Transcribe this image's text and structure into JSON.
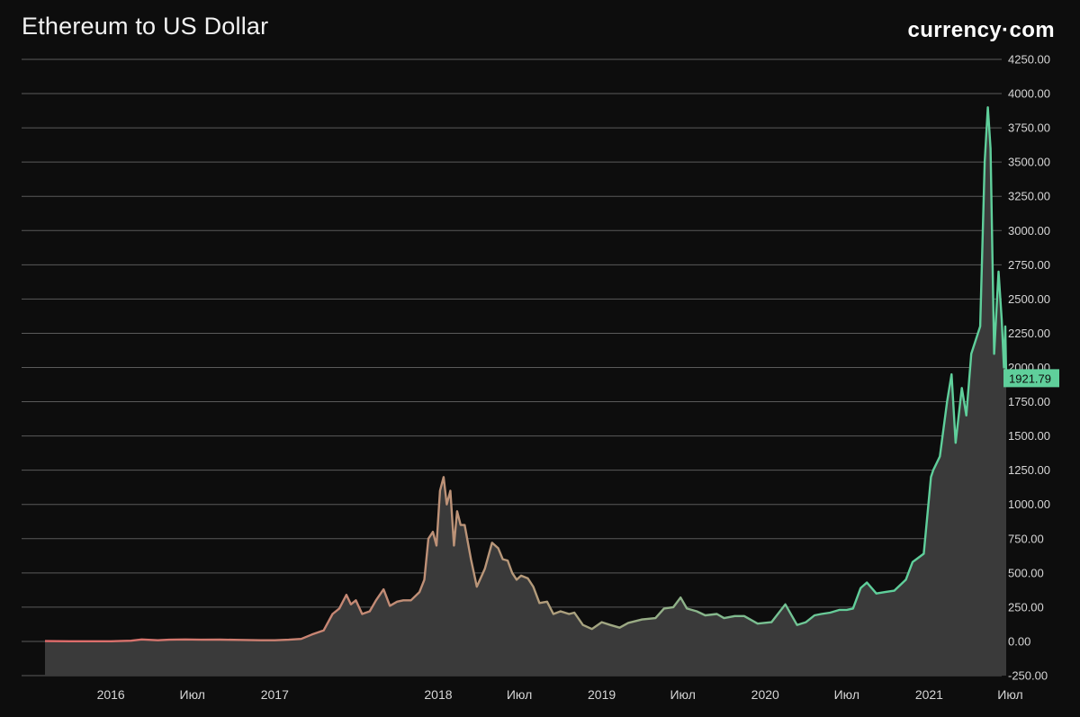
{
  "header": {
    "title": "Ethereum to US Dollar",
    "brand": "currency·com"
  },
  "colors": {
    "background": "#0d0d0d",
    "grid": "#5a5a5a",
    "line_start": "#e06a6a",
    "line_mid": "#b69a7a",
    "line_end": "#5fcf9b",
    "area_fill": "#3a3a3a",
    "price_tag": "#5fcf9b"
  },
  "chart_data": {
    "type": "area",
    "title": "Ethereum to US Dollar",
    "xlabel": "",
    "ylabel": "",
    "ylim": [
      -250,
      4250
    ],
    "y_ticks": [
      "4250.00",
      "4000.00",
      "3750.00",
      "3500.00",
      "3250.00",
      "3000.00",
      "2750.00",
      "2500.00",
      "2250.00",
      "2000.00",
      "1750.00",
      "1500.00",
      "1250.00",
      "1000.00",
      "750.00",
      "500.00",
      "250.00",
      "0.00",
      "-250.00"
    ],
    "x_ticks": [
      {
        "label": "2016",
        "date": "2016-01-01"
      },
      {
        "label": "Июл",
        "date": "2016-07-01"
      },
      {
        "label": "2017",
        "date": "2017-01-01"
      },
      {
        "label": "2018",
        "date": "2018-01-01"
      },
      {
        "label": "Июл",
        "date": "2018-07-01"
      },
      {
        "label": "2019",
        "date": "2019-01-01"
      },
      {
        "label": "Июл",
        "date": "2019-07-01"
      },
      {
        "label": "2020",
        "date": "2020-01-01"
      },
      {
        "label": "Июл",
        "date": "2020-07-01"
      },
      {
        "label": "2021",
        "date": "2021-01-01"
      },
      {
        "label": "Июл",
        "date": "2021-07-01"
      }
    ],
    "xlim": [
      "2015-08-07",
      "2021-06-22"
    ],
    "grid": true,
    "last_price_label": "1921.79",
    "series": [
      {
        "points": [
          [
            "2015-08-07",
            2
          ],
          [
            "2015-10-01",
            1
          ],
          [
            "2015-12-01",
            1
          ],
          [
            "2016-01-01",
            1
          ],
          [
            "2016-02-15",
            5
          ],
          [
            "2016-03-10",
            14
          ],
          [
            "2016-04-15",
            8
          ],
          [
            "2016-05-10",
            12
          ],
          [
            "2016-06-15",
            14
          ],
          [
            "2016-07-20",
            12
          ],
          [
            "2016-09-01",
            13
          ],
          [
            "2016-10-15",
            11
          ],
          [
            "2016-12-01",
            8
          ],
          [
            "2017-01-01",
            8
          ],
          [
            "2017-02-01",
            12
          ],
          [
            "2017-03-01",
            18
          ],
          [
            "2017-03-25",
            50
          ],
          [
            "2017-04-20",
            80
          ],
          [
            "2017-05-10",
            200
          ],
          [
            "2017-05-25",
            240
          ],
          [
            "2017-06-10",
            340
          ],
          [
            "2017-06-20",
            270
          ],
          [
            "2017-07-01",
            300
          ],
          [
            "2017-07-15",
            200
          ],
          [
            "2017-08-01",
            220
          ],
          [
            "2017-08-15",
            300
          ],
          [
            "2017-09-01",
            380
          ],
          [
            "2017-09-15",
            260
          ],
          [
            "2017-10-01",
            290
          ],
          [
            "2017-10-15",
            300
          ],
          [
            "2017-11-01",
            300
          ],
          [
            "2017-11-20",
            360
          ],
          [
            "2017-12-01",
            450
          ],
          [
            "2017-12-10",
            750
          ],
          [
            "2017-12-20",
            800
          ],
          [
            "2017-12-28",
            700
          ],
          [
            "2018-01-05",
            1100
          ],
          [
            "2018-01-13",
            1200
          ],
          [
            "2018-01-20",
            1000
          ],
          [
            "2018-01-28",
            1100
          ],
          [
            "2018-02-05",
            700
          ],
          [
            "2018-02-12",
            950
          ],
          [
            "2018-02-20",
            850
          ],
          [
            "2018-03-01",
            850
          ],
          [
            "2018-03-15",
            600
          ],
          [
            "2018-03-28",
            400
          ],
          [
            "2018-04-15",
            530
          ],
          [
            "2018-05-01",
            720
          ],
          [
            "2018-05-15",
            680
          ],
          [
            "2018-05-25",
            600
          ],
          [
            "2018-06-05",
            590
          ],
          [
            "2018-06-15",
            500
          ],
          [
            "2018-06-25",
            450
          ],
          [
            "2018-07-05",
            480
          ],
          [
            "2018-07-20",
            460
          ],
          [
            "2018-08-01",
            400
          ],
          [
            "2018-08-15",
            280
          ],
          [
            "2018-09-01",
            290
          ],
          [
            "2018-09-15",
            200
          ],
          [
            "2018-10-01",
            220
          ],
          [
            "2018-10-20",
            200
          ],
          [
            "2018-11-01",
            210
          ],
          [
            "2018-11-20",
            120
          ],
          [
            "2018-12-10",
            90
          ],
          [
            "2019-01-01",
            140
          ],
          [
            "2019-01-20",
            120
          ],
          [
            "2019-02-10",
            100
          ],
          [
            "2019-03-01",
            135
          ],
          [
            "2019-04-01",
            160
          ],
          [
            "2019-05-01",
            170
          ],
          [
            "2019-05-20",
            240
          ],
          [
            "2019-06-10",
            250
          ],
          [
            "2019-06-26",
            320
          ],
          [
            "2019-07-10",
            240
          ],
          [
            "2019-08-01",
            220
          ],
          [
            "2019-08-20",
            190
          ],
          [
            "2019-09-15",
            200
          ],
          [
            "2019-10-01",
            170
          ],
          [
            "2019-10-25",
            185
          ],
          [
            "2019-11-15",
            185
          ],
          [
            "2019-12-15",
            130
          ],
          [
            "2020-01-15",
            140
          ],
          [
            "2020-02-15",
            270
          ],
          [
            "2020-03-12",
            120
          ],
          [
            "2020-04-01",
            140
          ],
          [
            "2020-04-20",
            190
          ],
          [
            "2020-05-05",
            200
          ],
          [
            "2020-05-25",
            210
          ],
          [
            "2020-06-15",
            230
          ],
          [
            "2020-07-01",
            230
          ],
          [
            "2020-07-15",
            240
          ],
          [
            "2020-08-01",
            390
          ],
          [
            "2020-08-15",
            430
          ],
          [
            "2020-09-05",
            350
          ],
          [
            "2020-09-25",
            360
          ],
          [
            "2020-10-15",
            370
          ],
          [
            "2020-11-10",
            450
          ],
          [
            "2020-11-25",
            580
          ],
          [
            "2020-12-20",
            640
          ],
          [
            "2021-01-05",
            1200
          ],
          [
            "2021-01-10",
            1250
          ],
          [
            "2021-01-25",
            1350
          ],
          [
            "2021-02-10",
            1750
          ],
          [
            "2021-02-20",
            1950
          ],
          [
            "2021-03-01",
            1450
          ],
          [
            "2021-03-15",
            1850
          ],
          [
            "2021-03-25",
            1650
          ],
          [
            "2021-04-05",
            2100
          ],
          [
            "2021-04-25",
            2300
          ],
          [
            "2021-05-05",
            3500
          ],
          [
            "2021-05-12",
            3900
          ],
          [
            "2021-05-18",
            3600
          ],
          [
            "2021-05-26",
            2100
          ],
          [
            "2021-06-05",
            2700
          ],
          [
            "2021-06-12",
            2350
          ],
          [
            "2021-06-17",
            2000
          ],
          [
            "2021-06-20",
            2300
          ],
          [
            "2021-06-22",
            1922
          ]
        ]
      }
    ]
  }
}
